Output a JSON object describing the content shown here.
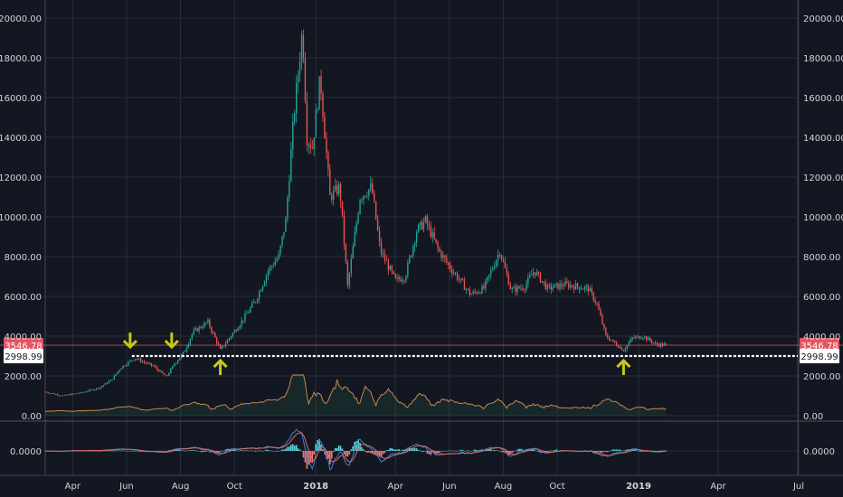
{
  "chart_data": {
    "type": "candlestick",
    "price_axis": {
      "ticks": [
        "0.00",
        "2000.00",
        "4000.00",
        "6000.00",
        "8000.00",
        "10000.00",
        "12000.00",
        "14000.00",
        "16000.00",
        "18000.00",
        "20000.00"
      ],
      "tick_values": [
        0,
        2000,
        4000,
        6000,
        8000,
        10000,
        12000,
        14000,
        16000,
        18000,
        20000
      ],
      "range": [
        0,
        20000
      ],
      "side": "both"
    },
    "oscillator_axis": {
      "ticks": [
        "0.0000"
      ]
    },
    "time_axis": {
      "start_date": "2017-03-01",
      "end_date": "2019-06-30",
      "labels": [
        {
          "text": "Apr",
          "date": "2017-04-01",
          "bold": false
        },
        {
          "text": "Jun",
          "date": "2017-06-01",
          "bold": false
        },
        {
          "text": "Aug",
          "date": "2017-08-01",
          "bold": false
        },
        {
          "text": "Oct",
          "date": "2017-10-01",
          "bold": false
        },
        {
          "text": "2018",
          "date": "2018-01-01",
          "bold": true
        },
        {
          "text": "Apr",
          "date": "2018-04-01",
          "bold": false
        },
        {
          "text": "Jun",
          "date": "2018-06-01",
          "bold": false
        },
        {
          "text": "Aug",
          "date": "2018-08-01",
          "bold": false
        },
        {
          "text": "Oct",
          "date": "2018-10-01",
          "bold": false
        },
        {
          "text": "2019",
          "date": "2019-01-01",
          "bold": true
        },
        {
          "text": "Apr",
          "date": "2019-04-01",
          "bold": false
        },
        {
          "text": "Jul",
          "date": "2019-07-01",
          "bold": false
        }
      ]
    },
    "price_path": [
      [
        "2017-03-01",
        1200
      ],
      [
        "2017-03-20",
        1000
      ],
      [
        "2017-04-10",
        1150
      ],
      [
        "2017-05-01",
        1400
      ],
      [
        "2017-05-15",
        1800
      ],
      [
        "2017-05-25",
        2400
      ],
      [
        "2017-06-10",
        2900
      ],
      [
        "2017-06-20",
        2700
      ],
      [
        "2017-07-01",
        2500
      ],
      [
        "2017-07-16",
        1950
      ],
      [
        "2017-07-25",
        2600
      ],
      [
        "2017-08-05",
        3200
      ],
      [
        "2017-08-15",
        4200
      ],
      [
        "2017-09-01",
        4700
      ],
      [
        "2017-09-15",
        3300
      ],
      [
        "2017-09-25",
        3900
      ],
      [
        "2017-10-10",
        4800
      ],
      [
        "2017-10-25",
        5800
      ],
      [
        "2017-11-08",
        7300
      ],
      [
        "2017-11-20",
        8000
      ],
      [
        "2017-11-28",
        9800
      ],
      [
        "2017-12-07",
        15000
      ],
      [
        "2017-12-17",
        19500
      ],
      [
        "2017-12-22",
        14000
      ],
      [
        "2017-12-28",
        13500
      ],
      [
        "2018-01-06",
        17000
      ],
      [
        "2018-01-17",
        11000
      ],
      [
        "2018-01-28",
        11500
      ],
      [
        "2018-02-06",
        6500
      ],
      [
        "2018-02-20",
        11000
      ],
      [
        "2018-03-05",
        11500
      ],
      [
        "2018-03-15",
        8300
      ],
      [
        "2018-04-01",
        6800
      ],
      [
        "2018-04-12",
        7000
      ],
      [
        "2018-04-25",
        9300
      ],
      [
        "2018-05-05",
        9800
      ],
      [
        "2018-05-20",
        8300
      ],
      [
        "2018-06-01",
        7500
      ],
      [
        "2018-06-25",
        6100
      ],
      [
        "2018-07-10",
        6400
      ],
      [
        "2018-07-28",
        8300
      ],
      [
        "2018-08-10",
        6300
      ],
      [
        "2018-08-25",
        6500
      ],
      [
        "2018-09-05",
        7300
      ],
      [
        "2018-09-20",
        6400
      ],
      [
        "2018-10-10",
        6600
      ],
      [
        "2018-11-05",
        6400
      ],
      [
        "2018-11-15",
        5600
      ],
      [
        "2018-11-25",
        4000
      ],
      [
        "2018-12-15",
        3300
      ],
      [
        "2018-12-25",
        3900
      ],
      [
        "2019-01-06",
        4000
      ],
      [
        "2019-01-20",
        3600
      ],
      [
        "2019-02-01",
        3546.78
      ]
    ],
    "current_price": 3546.78,
    "support_price": 2998.99,
    "annotations": {
      "down_arrows": [
        "2017-06-05",
        "2017-07-22"
      ],
      "up_arrows": [
        "2017-09-15",
        "2018-12-15"
      ]
    },
    "colors": {
      "background": "#131722",
      "up": "#26a69a",
      "down": "#ef5350",
      "grid": "#2a2e39",
      "text": "#d1d4dc",
      "price_tag": "#e05561",
      "arrow": "#c8c818",
      "indicator_line": "#c9874e",
      "macd_line": "#3b82d6",
      "signal_line": "#e06a5a"
    }
  }
}
